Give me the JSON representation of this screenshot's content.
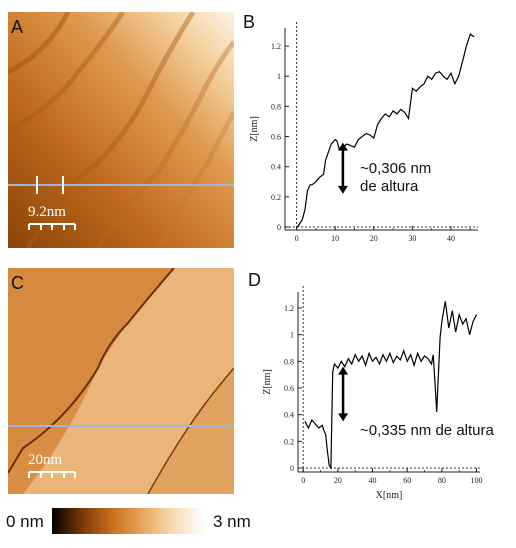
{
  "panels": {
    "A": {
      "letter": "A",
      "scale_bar": "9.2nm"
    },
    "B": {
      "letter": "B",
      "annotation_line1": "~0,306 nm",
      "annotation_line2": "de altura"
    },
    "C": {
      "letter": "C",
      "scale_bar": "20nm"
    },
    "D": {
      "letter": "D",
      "annotation": "~0,335 nm de altura"
    }
  },
  "colorbar": {
    "min_label": "0 nm",
    "max_label": "3 nm",
    "colors": [
      "#000000",
      "#7a3a08",
      "#c8701c",
      "#e8a860",
      "#f6dcb4",
      "#ffffff"
    ]
  },
  "colors": {
    "profile_line": "#9fb4d8",
    "trace": "#000000"
  },
  "chart_data": [
    {
      "panel": "B",
      "type": "line",
      "xlabel": "",
      "ylabel": "Z[nm]",
      "xlim": [
        -3,
        47
      ],
      "ylim": [
        -0.02,
        1.32
      ],
      "xticks": [
        "0",
        "10",
        "20",
        "30",
        "40"
      ],
      "xtick_values": [
        0,
        10,
        20,
        30,
        40
      ],
      "yticks": [
        "0",
        "0.2",
        "0.4",
        "0.6",
        "0.8",
        "1",
        "1.2"
      ],
      "ytick_values": [
        0,
        0.2,
        0.4,
        0.6,
        0.8,
        1,
        1.2
      ],
      "x": [
        0.2,
        1,
        1.5,
        2.2,
        2.8,
        3.5,
        4,
        4.5,
        5,
        6,
        7,
        7.5,
        8,
        9,
        10,
        10.5,
        11,
        12,
        13,
        14,
        15,
        16,
        17,
        18,
        19,
        20,
        21,
        22,
        23,
        24,
        25,
        26,
        27,
        28,
        29,
        30,
        31,
        32,
        33,
        34,
        35,
        36,
        37,
        38,
        39,
        40,
        41,
        42,
        43,
        44,
        45,
        46
      ],
      "y": [
        0.0,
        0.03,
        0.05,
        0.12,
        0.24,
        0.28,
        0.28,
        0.29,
        0.3,
        0.33,
        0.35,
        0.44,
        0.48,
        0.55,
        0.58,
        0.57,
        0.52,
        0.53,
        0.55,
        0.54,
        0.53,
        0.58,
        0.6,
        0.62,
        0.61,
        0.59,
        0.68,
        0.72,
        0.75,
        0.73,
        0.77,
        0.75,
        0.78,
        0.76,
        0.72,
        0.92,
        0.9,
        0.93,
        0.95,
        1.0,
        0.98,
        1.02,
        1.03,
        1.0,
        0.98,
        1.02,
        0.95,
        1.0,
        1.1,
        1.2,
        1.28,
        1.26
      ]
    },
    {
      "panel": "D",
      "type": "line",
      "xlabel": "X[nm]",
      "ylabel": "Z[nm]",
      "xlim": [
        -3,
        102
      ],
      "ylim": [
        -0.03,
        1.32
      ],
      "xticks": [
        "0",
        "20",
        "40",
        "60",
        "80",
        "100"
      ],
      "xtick_values": [
        0,
        20,
        40,
        60,
        80,
        100
      ],
      "yticks": [
        "0",
        "0.2",
        "0.4",
        "0.6",
        "0.8",
        "1",
        "1.2"
      ],
      "ytick_values": [
        0,
        0.2,
        0.4,
        0.6,
        0.8,
        1,
        1.2
      ],
      "x": [
        1,
        3,
        5,
        7,
        9,
        11,
        12,
        13,
        14,
        15,
        16,
        17,
        18,
        20,
        22,
        24,
        26,
        28,
        30,
        32,
        34,
        36,
        38,
        40,
        42,
        44,
        46,
        48,
        50,
        52,
        54,
        56,
        58,
        60,
        62,
        64,
        66,
        68,
        70,
        72,
        74,
        75,
        76,
        77,
        78,
        79,
        80,
        82,
        84,
        86,
        88,
        90,
        92,
        94,
        96,
        98,
        100
      ],
      "y": [
        0.35,
        0.3,
        0.36,
        0.33,
        0.3,
        0.32,
        0.28,
        0.25,
        0.12,
        0.02,
        0.0,
        0.72,
        0.78,
        0.75,
        0.8,
        0.76,
        0.82,
        0.78,
        0.85,
        0.8,
        0.84,
        0.77,
        0.86,
        0.8,
        0.83,
        0.78,
        0.85,
        0.8,
        0.86,
        0.79,
        0.84,
        0.81,
        0.88,
        0.8,
        0.85,
        0.77,
        0.86,
        0.8,
        0.84,
        0.82,
        0.78,
        0.85,
        0.65,
        0.42,
        0.7,
        0.98,
        1.1,
        1.25,
        1.05,
        1.18,
        1.02,
        1.15,
        1.08,
        1.12,
        1.0,
        1.1,
        1.15
      ]
    }
  ]
}
